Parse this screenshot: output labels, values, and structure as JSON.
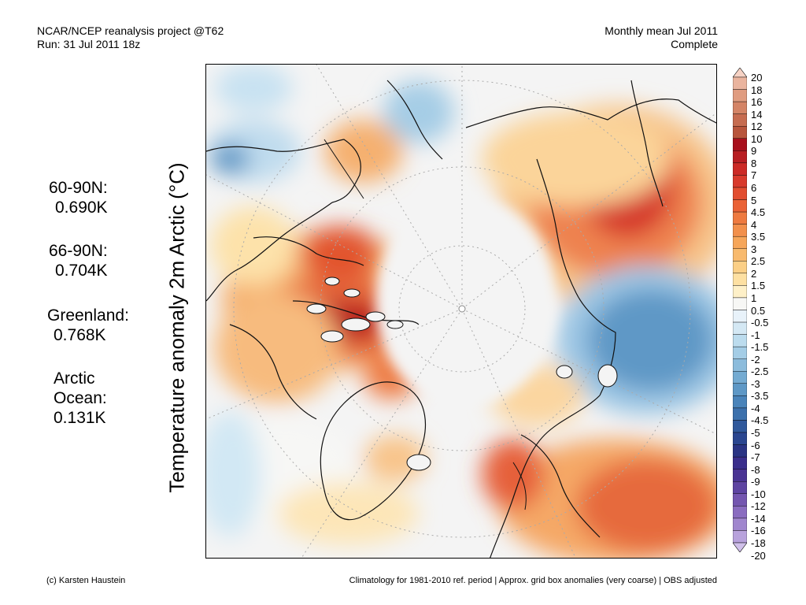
{
  "header": {
    "left_line1": "NCAR/NCEP reanalysis project @T62",
    "left_line2": "Run: 31 Jul 2011 18z",
    "right_line1": "Monthly mean Jul 2011",
    "right_line2": "Complete"
  },
  "stats": [
    {
      "label": "60-90N:",
      "value": "0.690K"
    },
    {
      "label": "66-90N:",
      "value": "0.704K"
    },
    {
      "label": "Greenland:",
      "value": "0.768K"
    },
    {
      "label": "Arctic",
      "label2": "Ocean:",
      "value": "0.131K"
    }
  ],
  "map": {
    "title": "Temperature anomaly 2m Arctic (°C)",
    "projection": "north polar stereographic"
  },
  "colorbar": {
    "labels": [
      "20",
      "18",
      "16",
      "14",
      "12",
      "10",
      "9",
      "8",
      "7",
      "6",
      "5",
      "4.5",
      "4",
      "3.5",
      "3",
      "2.5",
      "2",
      "1.5",
      "1",
      "0.5",
      "-0.5",
      "-1",
      "-1.5",
      "-2",
      "-2.5",
      "-3",
      "-3.5",
      "-4",
      "-4.5",
      "-5",
      "-6",
      "-7",
      "-8",
      "-9",
      "-10",
      "-12",
      "-14",
      "-16",
      "-18",
      "-20"
    ],
    "colors": [
      "#f6d2c4",
      "#eab49e",
      "#e09c80",
      "#d48466",
      "#c66c50",
      "#b8553c",
      "#a8101c",
      "#b81e22",
      "#cc2a26",
      "#d83a2c",
      "#e24e30",
      "#ea6236",
      "#ee7a40",
      "#f2904c",
      "#f6a65a",
      "#f8ba6e",
      "#fbcf86",
      "#fde0a2",
      "#fef0c8",
      "#f7f7f5",
      "#e8f2fa",
      "#d4e8f4",
      "#bcdcee",
      "#a4cde6",
      "#8cbcdc",
      "#74abd2",
      "#5e98c6",
      "#4a84ba",
      "#3c70ac",
      "#30599c",
      "#2a4690",
      "#2a3484",
      "#3a2e8c",
      "#4a3494",
      "#5e44a2",
      "#7456b0",
      "#8a6cc0",
      "#a086ce",
      "#b8a2dc",
      "#d0c0ea"
    ]
  },
  "footer": {
    "left": "(c) Karsten Haustein",
    "right": "Climatology for 1981-2010 ref. period | Approx. grid box anomalies (very coarse) | OBS adjusted"
  }
}
